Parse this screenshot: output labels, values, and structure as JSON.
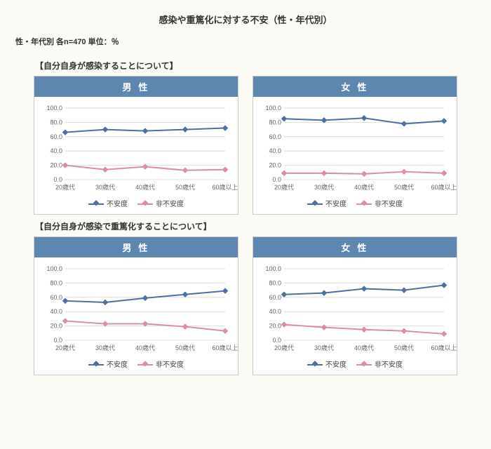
{
  "title": "感染や重篤化に対する不安（性・年代別）",
  "note": "性・年代別  各n=470  単位：％",
  "sections": [
    {
      "heading": "【自分自身が感染することについて】",
      "charts": [
        {
          "panel_title": "男  性",
          "type": "line",
          "categories": [
            "20歳代",
            "30歳代",
            "40歳代",
            "50歳代",
            "60歳以上"
          ],
          "ylim": [
            0,
            100
          ],
          "ytick_step": 20,
          "grid_color": "#dcdcdc",
          "background_color": "#ffffff",
          "label_fontsize": 9,
          "series": [
            {
              "name": "不安度",
              "values": [
                66,
                70,
                68,
                70,
                72
              ],
              "color": "#4d6fa1",
              "marker": "diamond"
            },
            {
              "name": "非不安度",
              "values": [
                20,
                14,
                18,
                13,
                14
              ],
              "color": "#df89ac",
              "marker": "diamond"
            }
          ]
        },
        {
          "panel_title": "女  性",
          "type": "line",
          "categories": [
            "20歳代",
            "30歳代",
            "40歳代",
            "50歳代",
            "60歳以上"
          ],
          "ylim": [
            0,
            100
          ],
          "ytick_step": 20,
          "grid_color": "#dcdcdc",
          "background_color": "#ffffff",
          "label_fontsize": 9,
          "series": [
            {
              "name": "不安度",
              "values": [
                85,
                83,
                86,
                78,
                82
              ],
              "color": "#4d6fa1",
              "marker": "diamond"
            },
            {
              "name": "非不安度",
              "values": [
                9,
                9,
                8,
                11,
                9
              ],
              "color": "#df89ac",
              "marker": "diamond"
            }
          ]
        }
      ]
    },
    {
      "heading": "【自分自身が感染で重篤化することについて】",
      "charts": [
        {
          "panel_title": "男  性",
          "type": "line",
          "categories": [
            "20歳代",
            "30歳代",
            "40歳代",
            "50歳代",
            "60歳以上"
          ],
          "ylim": [
            0,
            100
          ],
          "ytick_step": 20,
          "grid_color": "#dcdcdc",
          "background_color": "#ffffff",
          "label_fontsize": 9,
          "series": [
            {
              "name": "不安度",
              "values": [
                55,
                53,
                59,
                64,
                69
              ],
              "color": "#4d6fa1",
              "marker": "diamond"
            },
            {
              "name": "非不安度",
              "values": [
                27,
                23,
                23,
                19,
                13
              ],
              "color": "#df89ac",
              "marker": "diamond"
            }
          ]
        },
        {
          "panel_title": "女  性",
          "type": "line",
          "categories": [
            "20歳代",
            "30歳代",
            "40歳代",
            "50歳代",
            "60歳以上"
          ],
          "ylim": [
            0,
            100
          ],
          "ytick_step": 20,
          "grid_color": "#dcdcdc",
          "background_color": "#ffffff",
          "label_fontsize": 9,
          "series": [
            {
              "name": "不安度",
              "values": [
                64,
                66,
                72,
                70,
                77
              ],
              "color": "#4d6fa1",
              "marker": "diamond"
            },
            {
              "name": "非不安度",
              "values": [
                22,
                18,
                15,
                13,
                9
              ],
              "color": "#df89ac",
              "marker": "diamond"
            }
          ]
        }
      ]
    }
  ],
  "legend": {
    "anxiety": "不安度",
    "not_anxiety": "非不安度"
  },
  "colors": {
    "anxiety": "#4d6fa1",
    "not_anxiety": "#df89ac",
    "header_bg": "#5e87b0"
  },
  "ytick_labels": [
    "0.0",
    "20.0",
    "40.0",
    "60.0",
    "80.0",
    "100.0"
  ]
}
